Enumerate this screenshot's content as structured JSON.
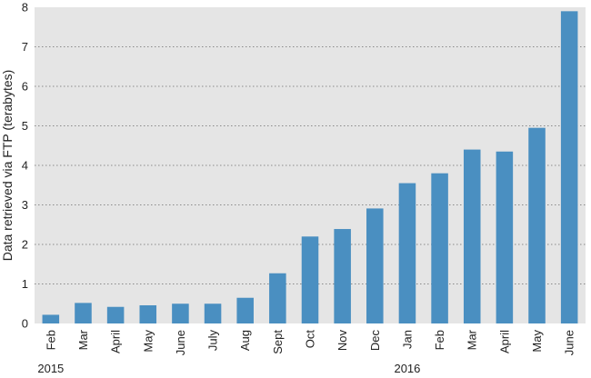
{
  "chart_data": {
    "type": "bar",
    "ylabel": "Data retrieved via FTP (terabytes)",
    "xlabel": "",
    "ylim": [
      0,
      8
    ],
    "yticks": [
      0,
      1,
      2,
      3,
      4,
      5,
      6,
      7,
      8
    ],
    "grid": true,
    "categories": [
      "Feb",
      "Mar",
      "April",
      "May",
      "June",
      "July",
      "Aug",
      "Sept",
      "Oct",
      "Nov",
      "Dec",
      "Jan",
      "Feb",
      "Mar",
      "April",
      "May",
      "June"
    ],
    "values": [
      0.22,
      0.52,
      0.42,
      0.46,
      0.5,
      0.5,
      0.65,
      1.27,
      2.2,
      2.39,
      2.91,
      3.55,
      3.8,
      4.4,
      4.35,
      4.95,
      7.9
    ],
    "year_labels": [
      {
        "label": "2015",
        "category_index": 0
      },
      {
        "label": "2016",
        "category_index": 11
      }
    ],
    "bar_color": "#4a8fc1",
    "plot_background": "#e5e5e5"
  }
}
